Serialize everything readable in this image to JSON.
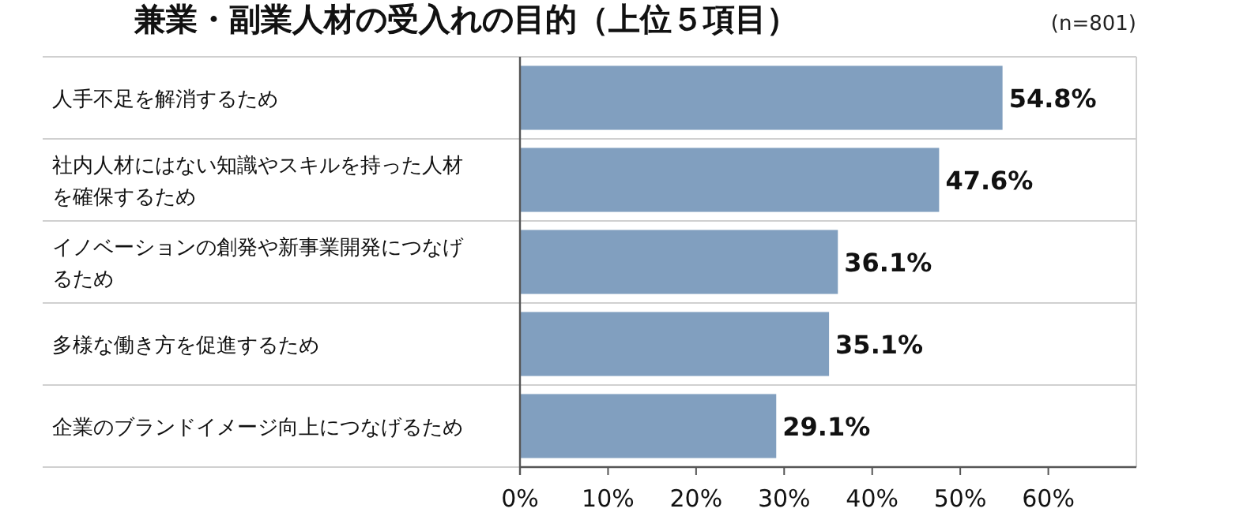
{
  "chart_data": {
    "type": "bar",
    "orientation": "horizontal",
    "title": "兼業・副業人材の受入れの目的（上位５項目）",
    "annotations": [
      "(n=801)"
    ],
    "categories": [
      "人手不足を解消するため",
      "社内人材にはない知識やスキルを持った人材を確保するため",
      "イノベーションの創発や新事業開発につなげるため",
      "多様な働き方を促進するため",
      "企業のブランドイメージ向上につなげるため"
    ],
    "values": [
      54.8,
      47.6,
      36.1,
      35.1,
      29.1
    ],
    "value_labels": [
      "54.8%",
      "47.6%",
      "36.1%",
      "35.1%",
      "29.1%"
    ],
    "color": "#819fbf",
    "xlim": [
      0,
      70
    ],
    "xticks": [
      {
        "value": 0,
        "label": "0%"
      },
      {
        "value": 10,
        "label": "10%"
      },
      {
        "value": 20,
        "label": "20%"
      },
      {
        "value": 30,
        "label": "30%"
      },
      {
        "value": 40,
        "label": "40%"
      },
      {
        "value": 50,
        "label": "50%"
      },
      {
        "value": 60,
        "label": "60%"
      }
    ],
    "grid": "y"
  }
}
